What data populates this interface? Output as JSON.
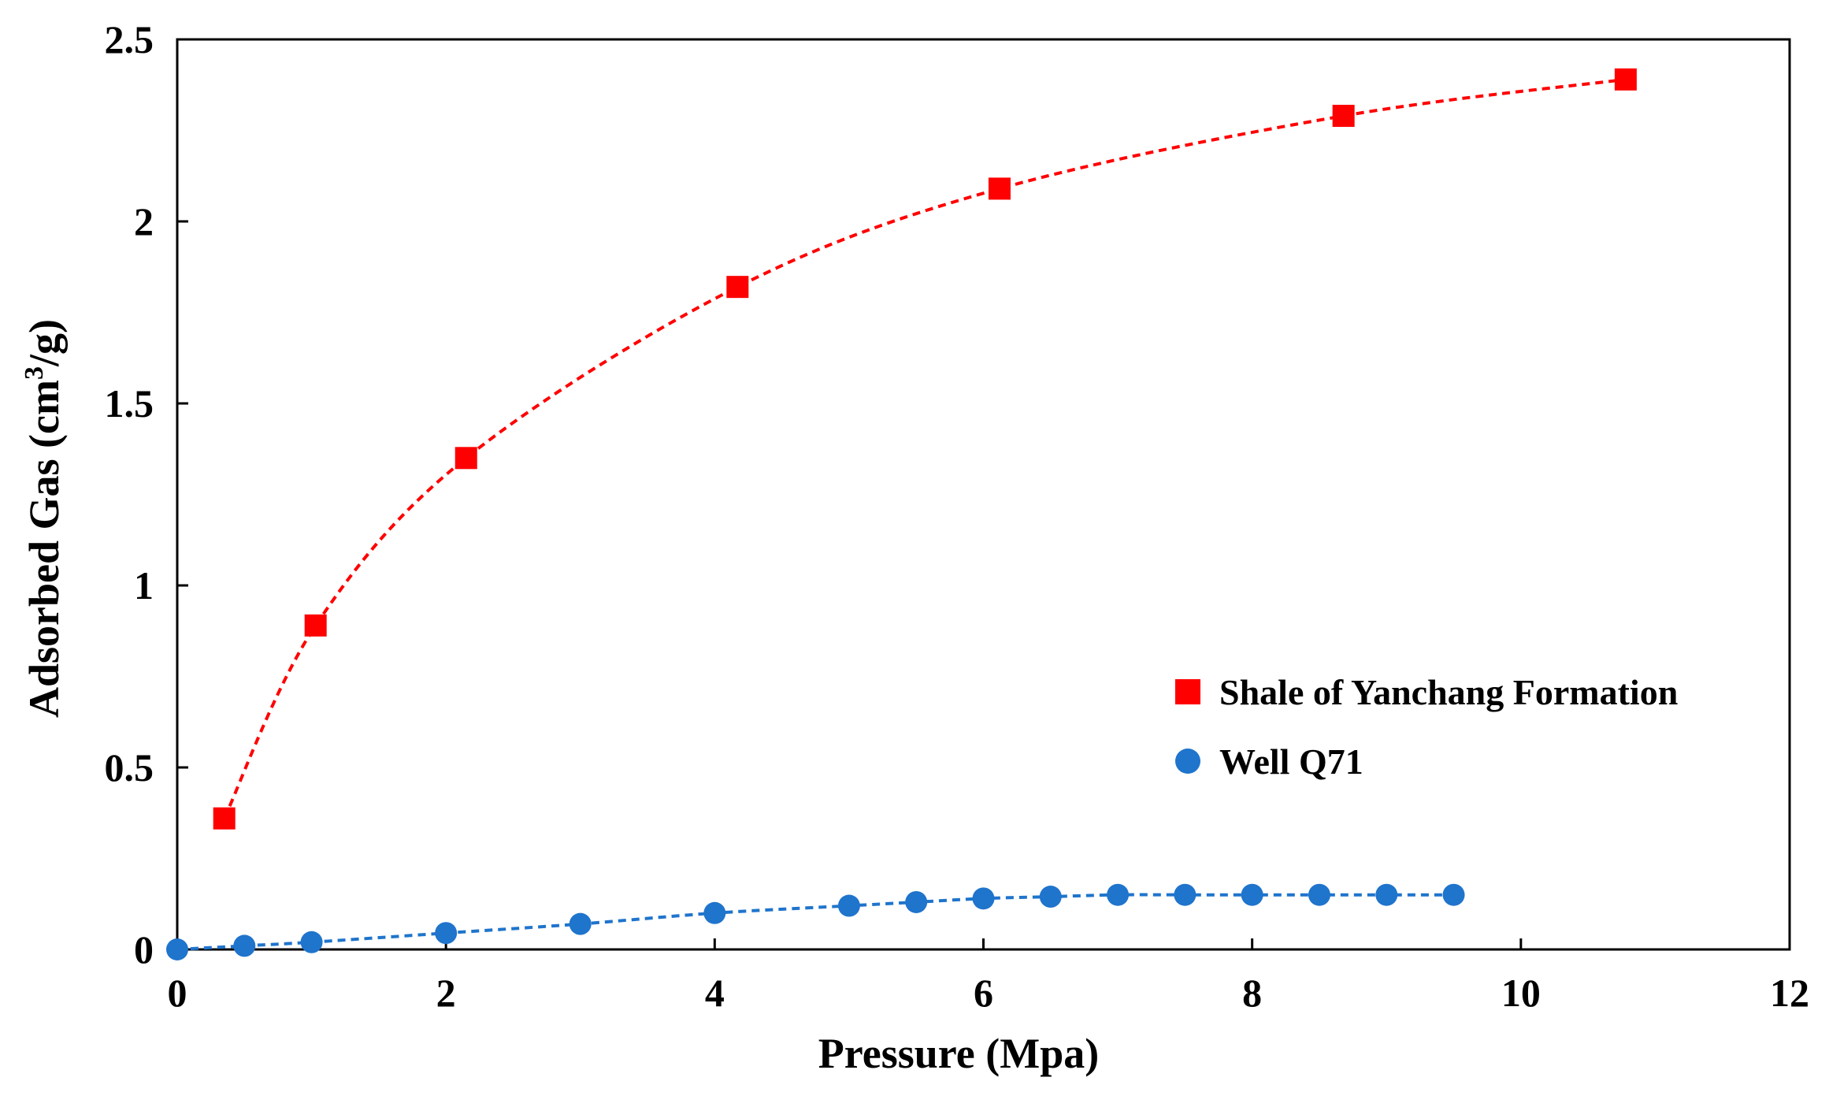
{
  "chart_data": {
    "type": "scatter",
    "title": "",
    "xlabel": "Pressure (Mpa)",
    "ylabel_prefix": "Adsorbed Gas (cm",
    "ylabel_sup": "3",
    "ylabel_suffix": "/g)",
    "xlim": [
      0,
      12
    ],
    "ylim": [
      0,
      2.5
    ],
    "x_ticks": [
      0,
      2,
      4,
      6,
      8,
      10,
      12
    ],
    "y_ticks": [
      0,
      0.5,
      1,
      1.5,
      2,
      2.5
    ],
    "x_tick_labels": [
      "0",
      "2",
      "4",
      "6",
      "8",
      "10",
      "12"
    ],
    "y_tick_labels": [
      "0",
      "0.5",
      "1",
      "1.5",
      "2",
      "2.5"
    ],
    "grid": false,
    "legend_position": "center-right",
    "series": [
      {
        "name": "Shale of Yanchang Formation",
        "marker": "square",
        "color": "#ff0000",
        "line_style": "dashed",
        "x": [
          0.35,
          1.03,
          2.15,
          4.17,
          6.12,
          8.68,
          10.78
        ],
        "y": [
          0.36,
          0.89,
          1.35,
          1.82,
          2.09,
          2.29,
          2.39
        ]
      },
      {
        "name": "Well Q71",
        "marker": "circle",
        "color": "#1f74cc",
        "line_style": "dashed",
        "x": [
          0,
          0.5,
          1,
          2,
          3,
          4,
          5,
          5.5,
          6,
          6.5,
          7,
          7.5,
          8,
          8.5,
          9,
          9.5
        ],
        "y": [
          0,
          0.01,
          0.02,
          0.045,
          0.07,
          0.1,
          0.12,
          0.13,
          0.14,
          0.145,
          0.15,
          0.15,
          0.15,
          0.15,
          0.15,
          0.15
        ]
      }
    ]
  }
}
